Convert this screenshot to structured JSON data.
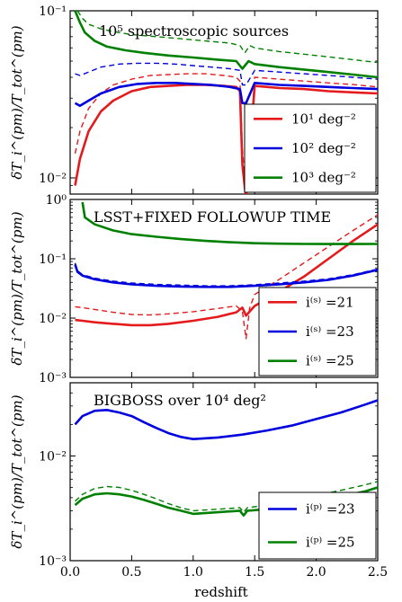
{
  "chart_data": [
    {
      "type": "line",
      "title": "10⁵ spectroscopic sources",
      "ylabel": "δT_i^(pm)/T_tot^(pm)",
      "yscale": "log",
      "ylim": [
        0.008,
        0.1
      ],
      "xlim": [
        0.0,
        2.5
      ],
      "ytick_labels": [
        "10⁻²",
        "10⁻¹"
      ],
      "ytick_values": [
        0.01,
        0.1
      ],
      "legend_position": "lower-right",
      "series": [
        {
          "name": "10¹ deg⁻²",
          "color": "#e41a1c",
          "solid": {
            "x": [
              0.04,
              0.08,
              0.15,
              0.25,
              0.35,
              0.5,
              0.65,
              0.8,
              0.95,
              1.1,
              1.25,
              1.35,
              1.38,
              1.4,
              1.43,
              1.5,
              1.7,
              1.9,
              2.1,
              2.3,
              2.5
            ],
            "y": [
              0.009,
              0.013,
              0.019,
              0.025,
              0.029,
              0.033,
              0.035,
              0.0355,
              0.036,
              0.036,
              0.0355,
              0.035,
              0.033,
              0.012,
              0.0075,
              0.0355,
              0.0345,
              0.034,
              0.033,
              0.0325,
              0.032
            ]
          },
          "dashed": {
            "x": [
              0.04,
              0.08,
              0.15,
              0.25,
              0.35,
              0.5,
              0.65,
              0.8,
              0.95,
              1.1,
              1.25,
              1.35,
              1.38,
              1.4,
              1.43,
              1.5,
              1.7,
              1.9,
              2.1,
              2.3,
              2.5
            ],
            "y": [
              0.014,
              0.019,
              0.026,
              0.032,
              0.036,
              0.039,
              0.041,
              0.0415,
              0.042,
              0.042,
              0.041,
              0.04,
              0.038,
              0.015,
              0.0075,
              0.04,
              0.039,
              0.038,
              0.037,
              0.0362,
              0.035
            ]
          }
        },
        {
          "name": "10² deg⁻²",
          "color": "#0000dd",
          "solid": {
            "x": [
              0.04,
              0.08,
              0.15,
              0.25,
              0.4,
              0.55,
              0.7,
              0.85,
              1.0,
              1.15,
              1.3,
              1.38,
              1.4,
              1.43,
              1.5,
              1.7,
              1.9,
              2.1,
              2.3,
              2.5
            ],
            "y": [
              0.028,
              0.027,
              0.029,
              0.032,
              0.035,
              0.0365,
              0.037,
              0.037,
              0.0365,
              0.036,
              0.035,
              0.034,
              0.028,
              0.028,
              0.037,
              0.036,
              0.0355,
              0.035,
              0.0345,
              0.034
            ]
          },
          "dashed": {
            "x": [
              0.04,
              0.08,
              0.15,
              0.25,
              0.4,
              0.55,
              0.7,
              0.85,
              1.0,
              1.15,
              1.3,
              1.38,
              1.4,
              1.43,
              1.5,
              1.7,
              1.9,
              2.1,
              2.3,
              2.5
            ],
            "y": [
              0.042,
              0.041,
              0.043,
              0.046,
              0.048,
              0.0485,
              0.0485,
              0.048,
              0.047,
              0.046,
              0.045,
              0.044,
              0.036,
              0.036,
              0.044,
              0.043,
              0.042,
              0.041,
              0.04,
              0.039
            ]
          }
        },
        {
          "name": "10³ deg⁻²",
          "color": "#008000",
          "solid": {
            "x": [
              0.04,
              0.08,
              0.12,
              0.2,
              0.3,
              0.45,
              0.6,
              0.8,
              1.0,
              1.2,
              1.35,
              1.4,
              1.45,
              1.5,
              1.7,
              1.9,
              2.1,
              2.3,
              2.5
            ],
            "y": [
              0.1,
              0.085,
              0.074,
              0.066,
              0.061,
              0.058,
              0.056,
              0.054,
              0.0525,
              0.051,
              0.05,
              0.045,
              0.05,
              0.048,
              0.046,
              0.0445,
              0.043,
              0.0415,
              0.04
            ]
          },
          "dashed": {
            "x": [
              0.06,
              0.1,
              0.15,
              0.25,
              0.35,
              0.5,
              0.7,
              0.9,
              1.1,
              1.3,
              1.38,
              1.42,
              1.46,
              1.5,
              1.7,
              1.9,
              2.1,
              2.3,
              2.5
            ],
            "y": [
              0.1,
              0.09,
              0.083,
              0.078,
              0.075,
              0.072,
              0.07,
              0.068,
              0.066,
              0.064,
              0.062,
              0.056,
              0.062,
              0.06,
              0.057,
              0.055,
              0.053,
              0.051,
              0.049
            ]
          }
        }
      ]
    },
    {
      "type": "line",
      "title": "LSST+FIXED FOLLOWUP TIME",
      "ylabel": "δT_i^(pm)/T_tot^(pm)",
      "yscale": "log",
      "ylim": [
        0.001,
        1.0
      ],
      "xlim": [
        0.0,
        2.5
      ],
      "ytick_labels": [
        "10⁻³",
        "10⁻²",
        "10⁻¹",
        "10⁰"
      ],
      "ytick_values": [
        0.001,
        0.01,
        0.1,
        1.0
      ],
      "legend_position": "lower-right",
      "series": [
        {
          "name": "i⁽ˢ⁾ =21",
          "color": "#e41a1c",
          "solid": {
            "x": [
              0.04,
              0.1,
              0.2,
              0.35,
              0.5,
              0.65,
              0.8,
              1.0,
              1.2,
              1.35,
              1.4,
              1.43,
              1.5,
              1.7,
              1.9,
              2.1,
              2.3,
              2.5
            ],
            "y": [
              0.0093,
              0.009,
              0.0085,
              0.008,
              0.0076,
              0.0076,
              0.008,
              0.009,
              0.0105,
              0.0125,
              0.015,
              0.011,
              0.016,
              0.028,
              0.05,
              0.1,
              0.2,
              0.38
            ]
          },
          "dashed": {
            "x": [
              0.04,
              0.1,
              0.2,
              0.35,
              0.5,
              0.65,
              0.8,
              1.0,
              1.2,
              1.35,
              1.4,
              1.43,
              1.46,
              1.5,
              1.7,
              1.9,
              2.1,
              2.3,
              2.5
            ],
            "y": [
              0.0155,
              0.015,
              0.014,
              0.0125,
              0.0115,
              0.0113,
              0.0118,
              0.0128,
              0.0145,
              0.016,
              0.013,
              0.0045,
              0.015,
              0.025,
              0.045,
              0.085,
              0.16,
              0.3,
              0.55
            ]
          }
        },
        {
          "name": "i⁽ˢ⁾ =23",
          "color": "#0000dd",
          "solid": {
            "x": [
              0.04,
              0.06,
              0.1,
              0.2,
              0.35,
              0.5,
              0.7,
              0.9,
              1.1,
              1.3,
              1.5,
              1.7,
              1.9,
              2.1,
              2.3,
              2.5
            ],
            "y": [
              0.08,
              0.06,
              0.052,
              0.045,
              0.04,
              0.037,
              0.035,
              0.034,
              0.0335,
              0.0335,
              0.035,
              0.037,
              0.04,
              0.044,
              0.052,
              0.065
            ]
          },
          "dashed": {
            "x": [
              0.04,
              0.06,
              0.1,
              0.2,
              0.35,
              0.5,
              0.7,
              0.9,
              1.1,
              1.3,
              1.5,
              1.7,
              1.9,
              2.1,
              2.3,
              2.5
            ],
            "y": [
              0.085,
              0.063,
              0.054,
              0.047,
              0.042,
              0.039,
              0.037,
              0.036,
              0.035,
              0.035,
              0.0365,
              0.039,
              0.042,
              0.046,
              0.054,
              0.067
            ]
          }
        },
        {
          "name": "i⁽ˢ⁾ =25",
          "color": "#008000",
          "solid": {
            "x": [
              0.1,
              0.12,
              0.2,
              0.35,
              0.5,
              0.7,
              0.9,
              1.1,
              1.3,
              1.5,
              1.7,
              1.9,
              2.1,
              2.3,
              2.5
            ],
            "y": [
              0.9,
              0.5,
              0.38,
              0.3,
              0.26,
              0.235,
              0.215,
              0.2,
              0.19,
              0.183,
              0.18,
              0.178,
              0.177,
              0.177,
              0.178
            ]
          }
        }
      ]
    },
    {
      "type": "line",
      "title": "BIGBOSS over 10⁴ deg²",
      "ylabel": "δT_i^(pm)/T_tot^(pm)",
      "xlabel": "redshift",
      "yscale": "log",
      "ylim": [
        0.001,
        0.05
      ],
      "xlim": [
        0.0,
        2.5
      ],
      "xtick_labels": [
        "0.0",
        "0.5",
        "1.0",
        "1.5",
        "2.0",
        "2.5"
      ],
      "ytick_labels": [
        "10⁻³",
        "10⁻²"
      ],
      "ytick_values": [
        0.001,
        0.01
      ],
      "legend_position": "lower-right",
      "series": [
        {
          "name": "i⁽ᵖ⁾ =23",
          "color": "#0000dd",
          "solid": {
            "x": [
              0.04,
              0.1,
              0.2,
              0.3,
              0.4,
              0.5,
              0.6,
              0.7,
              0.8,
              0.9,
              1.0,
              1.2,
              1.4,
              1.6,
              1.8,
              2.0,
              2.2,
              2.4,
              2.5
            ],
            "y": [
              0.02,
              0.024,
              0.027,
              0.0275,
              0.026,
              0.024,
              0.021,
              0.0185,
              0.0165,
              0.0152,
              0.0145,
              0.015,
              0.016,
              0.0175,
              0.0195,
              0.0225,
              0.026,
              0.031,
              0.034
            ]
          }
        },
        {
          "name": "i⁽ᵖ⁾ =25",
          "color": "#008000",
          "solid": {
            "x": [
              0.04,
              0.1,
              0.2,
              0.3,
              0.4,
              0.5,
              0.6,
              0.7,
              0.8,
              0.9,
              1.0,
              1.2,
              1.38,
              1.41,
              1.44,
              1.6,
              1.8,
              2.0,
              2.2,
              2.4,
              2.5
            ],
            "y": [
              0.0034,
              0.0039,
              0.0043,
              0.0044,
              0.0043,
              0.0041,
              0.0038,
              0.0035,
              0.0032,
              0.003,
              0.0028,
              0.0029,
              0.003,
              0.0027,
              0.003,
              0.0031,
              0.0034,
              0.0037,
              0.0041,
              0.0046,
              0.005
            ]
          },
          "dashed": {
            "x": [
              0.04,
              0.1,
              0.2,
              0.3,
              0.4,
              0.5,
              0.6,
              0.7,
              0.8,
              0.9,
              1.0,
              1.2,
              1.38,
              1.41,
              1.44,
              1.6,
              1.8,
              2.0,
              2.2,
              2.4,
              2.5
            ],
            "y": [
              0.0037,
              0.0043,
              0.0049,
              0.0051,
              0.005,
              0.0047,
              0.0043,
              0.0039,
              0.0035,
              0.0032,
              0.003,
              0.0031,
              0.0032,
              0.0029,
              0.0032,
              0.0034,
              0.0038,
              0.0042,
              0.0047,
              0.0053,
              0.0057
            ]
          }
        }
      ]
    }
  ]
}
